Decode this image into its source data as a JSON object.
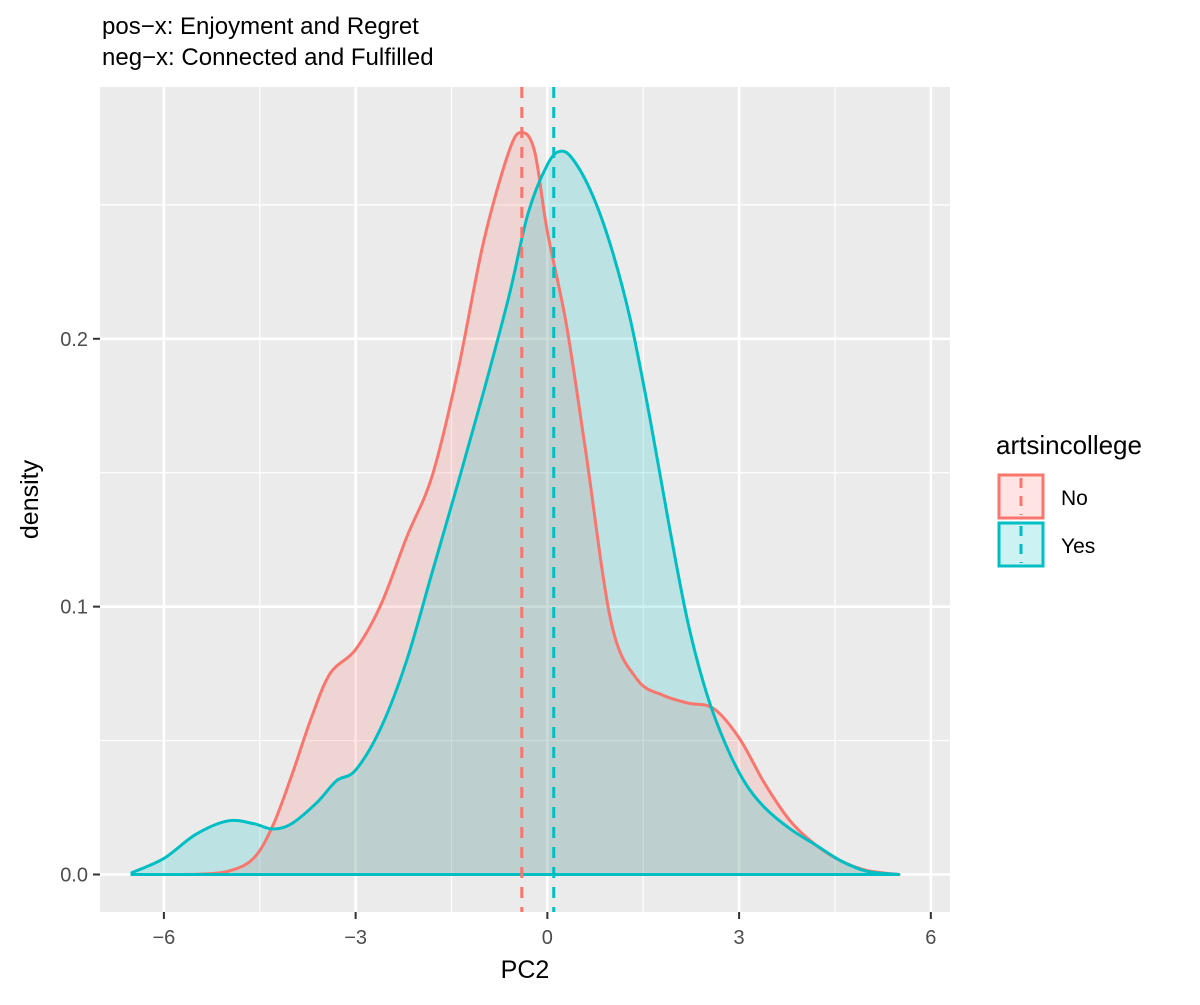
{
  "chart_data": {
    "type": "area",
    "title": "",
    "subtitle_lines": [
      "pos−x: Enjoyment and Regret",
      "neg−x: Connected and Fulfilled"
    ],
    "xlabel": "PC2",
    "ylabel": "density",
    "xlim": [
      -7.0,
      6.3
    ],
    "ylim": [
      -0.014,
      0.294
    ],
    "x_ticks": [
      -6,
      -3,
      0,
      3,
      6
    ],
    "x_tick_labels": [
      "−6",
      "−3",
      "0",
      "3",
      "6"
    ],
    "y_ticks": [
      0.0,
      0.1,
      0.2
    ],
    "y_tick_labels": [
      "0.0",
      "0.1",
      "0.2"
    ],
    "grid": true,
    "legend": {
      "title": "artsincollege",
      "placement": "right"
    },
    "series": [
      {
        "name": "No",
        "color": "#F8766D",
        "mean": -0.4,
        "x": [
          -6.5,
          -6.0,
          -5.5,
          -5.0,
          -4.6,
          -4.3,
          -4.0,
          -3.7,
          -3.4,
          -3.0,
          -2.6,
          -2.2,
          -1.8,
          -1.4,
          -1.0,
          -0.6,
          -0.4,
          -0.2,
          0.0,
          0.3,
          0.6,
          1.0,
          1.4,
          1.8,
          2.2,
          2.6,
          3.0,
          3.4,
          3.8,
          4.2,
          4.6,
          5.0,
          5.5
        ],
        "values": [
          0.0,
          0.0,
          0.0001,
          0.0012,
          0.006,
          0.018,
          0.037,
          0.058,
          0.075,
          0.084,
          0.101,
          0.126,
          0.149,
          0.188,
          0.236,
          0.27,
          0.277,
          0.27,
          0.24,
          0.205,
          0.158,
          0.094,
          0.073,
          0.067,
          0.064,
          0.062,
          0.051,
          0.034,
          0.02,
          0.011,
          0.005,
          0.0015,
          0.0
        ]
      },
      {
        "name": "Yes",
        "color": "#00BFC4",
        "mean": 0.1,
        "x": [
          -6.5,
          -6.0,
          -5.5,
          -5.0,
          -4.6,
          -4.3,
          -4.0,
          -3.6,
          -3.3,
          -3.0,
          -2.6,
          -2.2,
          -1.8,
          -1.4,
          -1.0,
          -0.6,
          -0.3,
          0.0,
          0.2,
          0.4,
          0.7,
          1.0,
          1.3,
          1.6,
          1.9,
          2.2,
          2.5,
          2.8,
          3.1,
          3.4,
          3.8,
          4.2,
          4.6,
          5.0,
          5.5
        ],
        "values": [
          0.0007,
          0.006,
          0.015,
          0.02,
          0.019,
          0.017,
          0.019,
          0.027,
          0.035,
          0.039,
          0.055,
          0.08,
          0.113,
          0.146,
          0.18,
          0.216,
          0.247,
          0.265,
          0.27,
          0.267,
          0.254,
          0.234,
          0.207,
          0.171,
          0.131,
          0.094,
          0.067,
          0.048,
          0.034,
          0.025,
          0.017,
          0.011,
          0.005,
          0.0012,
          0.0
        ]
      }
    ]
  }
}
